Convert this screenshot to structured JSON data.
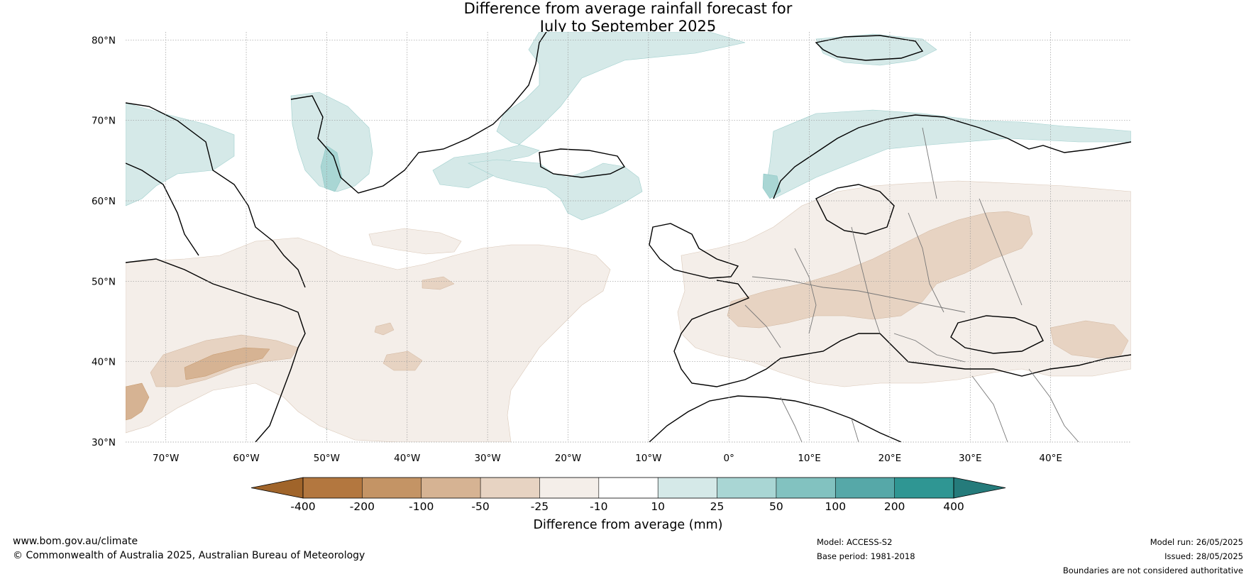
{
  "title": {
    "line1": "Difference from average rainfall forecast for",
    "line2": "July to September 2025"
  },
  "map": {
    "lat_labels": [
      "80°N",
      "70°N",
      "60°N",
      "50°N",
      "40°N",
      "30°N"
    ],
    "lon_labels": [
      "70°W",
      "60°W",
      "50°W",
      "40°W",
      "30°W",
      "20°W",
      "10°W",
      "0°",
      "10°E",
      "20°E",
      "30°E",
      "40°E"
    ],
    "lat_range": [
      30,
      81
    ],
    "lon_range": [
      -75,
      50
    ]
  },
  "colorbar": {
    "ticks": [
      "-400",
      "-200",
      "-100",
      "-50",
      "-25",
      "-10",
      "10",
      "25",
      "50",
      "100",
      "200",
      "400"
    ],
    "colors": [
      "#a0642a",
      "#b3773f",
      "#c49465",
      "#d6b393",
      "#e7d3c2",
      "#f4eee9",
      "#ffffff",
      "#d5e9e8",
      "#a9d6d4",
      "#82c2c0",
      "#56a8a8",
      "#2f9693",
      "#257b7b"
    ],
    "label": "Difference from average (mm)"
  },
  "footer": {
    "website": "www.bom.gov.au/climate",
    "copyright": "© Commonwealth of Australia 2025, Australian Bureau of Meteorology",
    "model": "Model: ACCESS-S2",
    "base_period": "Base period: 1981-2018",
    "model_run": "Model run: 26/05/2025",
    "issued": "Issued: 28/05/2025",
    "disclaimer": "Boundaries are not considered authoritative"
  }
}
